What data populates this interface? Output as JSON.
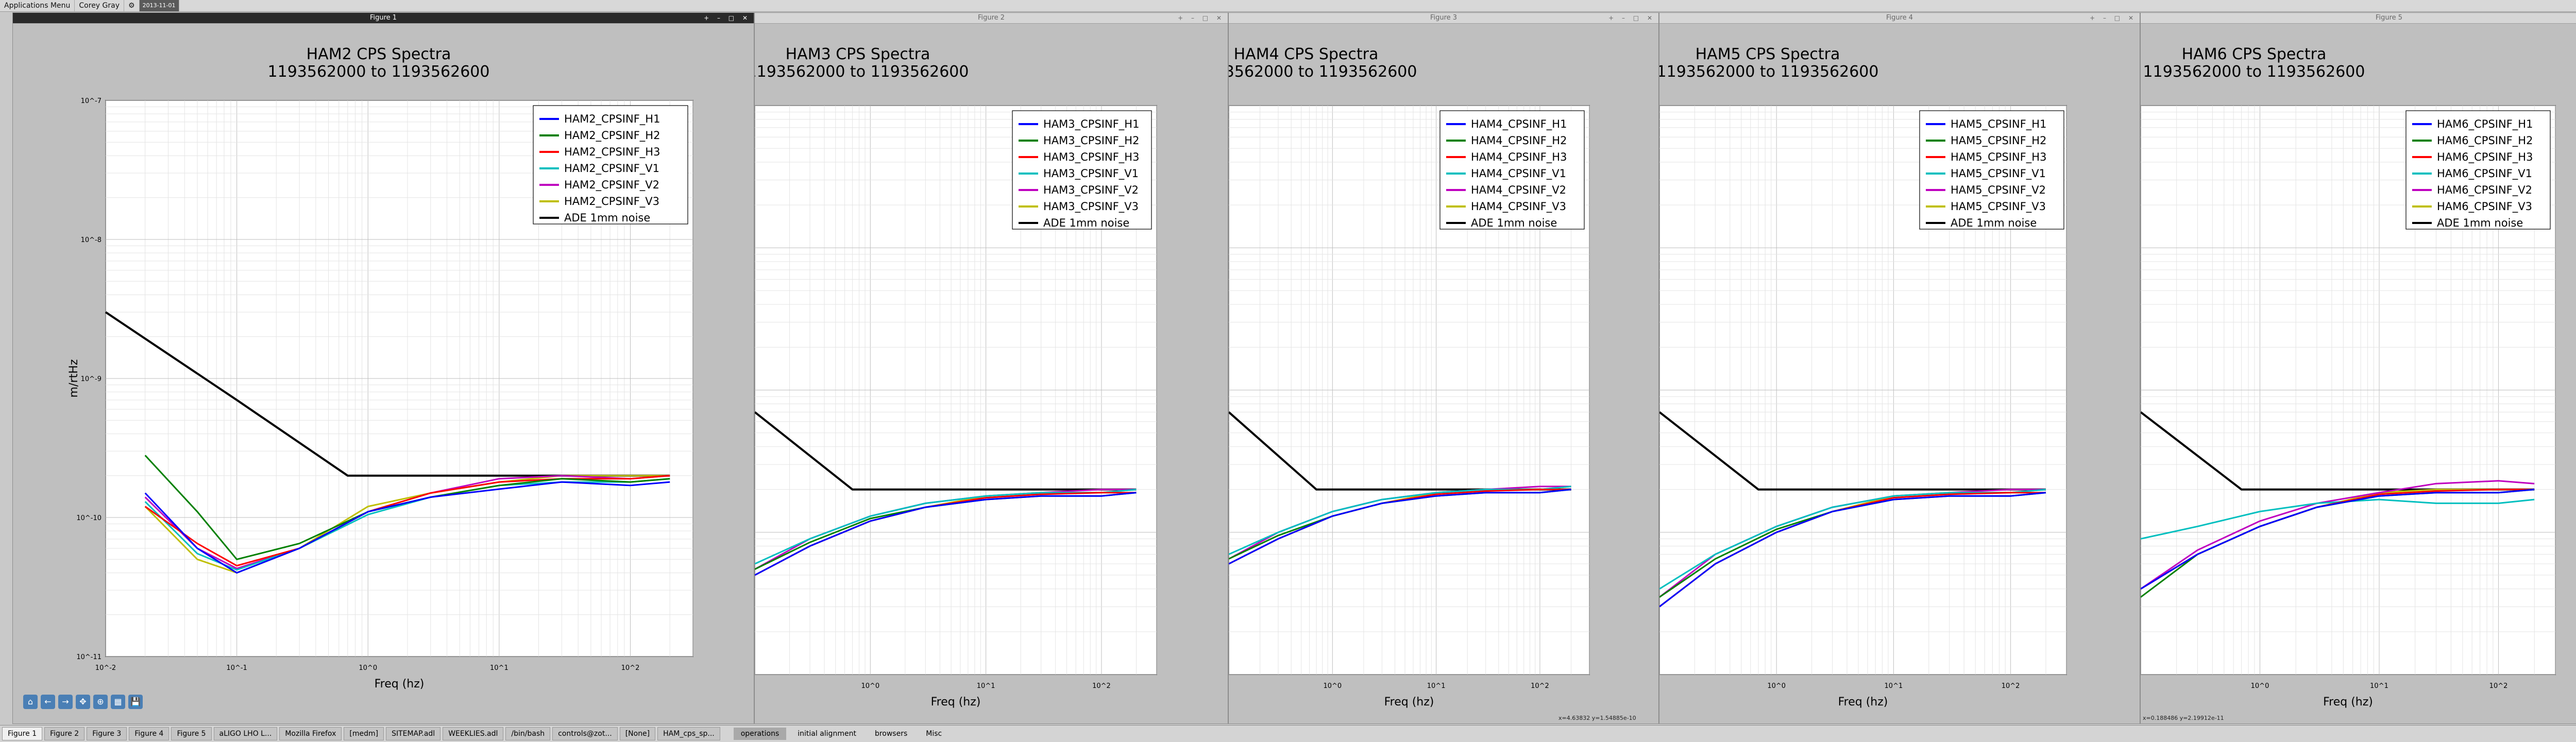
{
  "topbar": {
    "apps_menu": "Applications Menu",
    "user": "Corey Gray",
    "clock": "2013-11-01"
  },
  "colors": {
    "H1": "#0000ff",
    "H2": "#008000",
    "H3": "#ff0000",
    "V1": "#00bfbf",
    "V2": "#bf00bf",
    "V3": "#bfbf00",
    "noise": "#000000"
  },
  "windows": [
    {
      "title": "Figure 1",
      "active": true
    },
    {
      "title": "Figure 2",
      "active": false
    },
    {
      "title": "Figure 3",
      "active": false
    },
    {
      "title": "Figure 4",
      "active": false
    },
    {
      "title": "Figure 5",
      "active": false
    }
  ],
  "charts": [
    {
      "title": "HAM2 CPS Spectra",
      "subtitle": "1193562000 to 1193562600",
      "prefix": "HAM2"
    },
    {
      "title": "HAM3 CPS Spectra",
      "subtitle": "1193562000 to 1193562600",
      "prefix": "HAM3"
    },
    {
      "title": "HAM4 CPS Spectra",
      "subtitle": "1193562000 to 1193562600",
      "prefix": "HAM4"
    },
    {
      "title": "HAM5 CPS Spectra",
      "subtitle": "1193562000 to 1193562600",
      "prefix": "HAM5"
    },
    {
      "title": "HAM6 CPS Spectra",
      "subtitle": "1193562000 to 1193562600",
      "prefix": "HAM6"
    }
  ],
  "chart_data": [
    {
      "type": "line",
      "title": "HAM2 CPS Spectra",
      "subtitle": "1193562000 to 1193562600",
      "xlabel": "Freq (hz)",
      "ylabel": "m/rtHz",
      "xscale": "log",
      "yscale": "log",
      "xlim": [
        0.01,
        300
      ],
      "ylim": [
        1e-11,
        1e-07
      ],
      "x_ticks": [
        "10^-2",
        "10^-1",
        "10^0",
        "10^1",
        "10^2"
      ],
      "y_ticks": [
        "10^-7",
        "10^-8",
        "10^-9",
        "10^-10",
        "10^-11"
      ],
      "legend_position": "top-right",
      "grid": true,
      "series": [
        {
          "name": "HAM2_CPSINF_H1",
          "x": [
            0.02,
            0.05,
            0.1,
            0.3,
            1,
            3,
            10,
            30,
            100,
            200
          ],
          "y": [
            1.5e-10,
            6e-11,
            4e-11,
            6e-11,
            1.1e-10,
            1.4e-10,
            1.6e-10,
            1.8e-10,
            1.7e-10,
            1.8e-10
          ]
        },
        {
          "name": "HAM2_CPSINF_H2",
          "x": [
            0.02,
            0.05,
            0.1,
            0.3,
            1,
            3,
            10,
            30,
            100,
            200
          ],
          "y": [
            2.8e-10,
            1.1e-10,
            5e-11,
            6.5e-11,
            1.1e-10,
            1.4e-10,
            1.7e-10,
            1.9e-10,
            1.8e-10,
            1.9e-10
          ]
        },
        {
          "name": "HAM2_CPSINF_H3",
          "x": [
            0.02,
            0.05,
            0.1,
            0.3,
            1,
            3,
            10,
            30,
            100,
            200
          ],
          "y": [
            1.2e-10,
            6.5e-11,
            4.5e-11,
            6e-11,
            1.1e-10,
            1.5e-10,
            1.8e-10,
            1.9e-10,
            1.9e-10,
            2e-10
          ]
        },
        {
          "name": "HAM2_CPSINF_V1",
          "x": [
            0.02,
            0.05,
            0.1,
            0.3,
            1,
            3,
            10,
            30,
            100,
            200
          ],
          "y": [
            1.3e-10,
            5.5e-11,
            4.2e-11,
            6e-11,
            1.05e-10,
            1.4e-10,
            1.7e-10,
            1.8e-10,
            1.8e-10,
            1.9e-10
          ]
        },
        {
          "name": "HAM2_CPSINF_V2",
          "x": [
            0.02,
            0.05,
            0.1,
            0.3,
            1,
            3,
            10,
            30,
            100,
            200
          ],
          "y": [
            1.4e-10,
            6e-11,
            4.3e-11,
            6e-11,
            1.1e-10,
            1.5e-10,
            1.9e-10,
            2e-10,
            1.9e-10,
            2e-10
          ]
        },
        {
          "name": "HAM2_CPSINF_V3",
          "x": [
            0.02,
            0.05,
            0.1,
            0.3,
            1,
            3,
            10,
            30,
            100,
            200
          ],
          "y": [
            1.2e-10,
            5e-11,
            4e-11,
            6e-11,
            1.2e-10,
            1.5e-10,
            1.8e-10,
            2e-10,
            2e-10,
            2e-10
          ]
        },
        {
          "name": "ADE 1mm noise",
          "x": [
            0.01,
            0.1,
            0.7,
            200
          ],
          "y": [
            3e-09,
            7e-10,
            2e-10,
            2e-10
          ]
        }
      ]
    },
    {
      "type": "line",
      "title": "HAM3 CPS Spectra",
      "subtitle": "1193562000 to 1193562600",
      "xlabel": "Freq (hz)",
      "xscale": "log",
      "yscale": "log",
      "xlim": [
        0.1,
        300
      ],
      "ylim": [
        1e-11,
        1e-07
      ],
      "x_ticks": [
        "10^0",
        "10^1",
        "10^2"
      ],
      "legend_position": "top-right",
      "grid": true,
      "series": [
        {
          "name": "HAM3_CPSINF_H1",
          "x": [
            0.1,
            0.3,
            1,
            3,
            10,
            30,
            100,
            200
          ],
          "y": [
            5e-11,
            8e-11,
            1.2e-10,
            1.5e-10,
            1.7e-10,
            1.8e-10,
            1.8e-10,
            1.9e-10
          ]
        },
        {
          "name": "HAM3_CPSINF_H2",
          "x": [
            0.1,
            0.3,
            1,
            3,
            10,
            30,
            100,
            200
          ],
          "y": [
            5.5e-11,
            8.5e-11,
            1.25e-10,
            1.5e-10,
            1.7e-10,
            1.8e-10,
            1.8e-10,
            1.9e-10
          ]
        },
        {
          "name": "HAM3_CPSINF_H3",
          "x": [
            0.1,
            0.3,
            1,
            3,
            10,
            30,
            100,
            200
          ],
          "y": [
            5e-11,
            8e-11,
            1.2e-10,
            1.5e-10,
            1.75e-10,
            1.85e-10,
            1.9e-10,
            1.9e-10
          ]
        },
        {
          "name": "HAM3_CPSINF_V1",
          "x": [
            0.1,
            0.3,
            1,
            3,
            10,
            30,
            100,
            200
          ],
          "y": [
            6e-11,
            9e-11,
            1.3e-10,
            1.6e-10,
            1.8e-10,
            1.9e-10,
            1.9e-10,
            2e-10
          ]
        },
        {
          "name": "HAM3_CPSINF_V2",
          "x": [
            0.1,
            0.3,
            1,
            3,
            10,
            30,
            100,
            200
          ],
          "y": [
            5.5e-11,
            9e-11,
            1.3e-10,
            1.6e-10,
            1.8e-10,
            1.9e-10,
            2e-10,
            2e-10
          ]
        },
        {
          "name": "HAM3_CPSINF_V3",
          "x": [
            0.1,
            0.3,
            1,
            3,
            10,
            30,
            100,
            200
          ],
          "y": [
            5e-11,
            8e-11,
            1.2e-10,
            1.5e-10,
            1.8e-10,
            1.9e-10,
            1.9e-10,
            2e-10
          ]
        },
        {
          "name": "ADE 1mm noise",
          "x": [
            0.1,
            0.7,
            200
          ],
          "y": [
            7e-10,
            2e-10,
            2e-10
          ]
        }
      ]
    },
    {
      "type": "line",
      "title": "HAM4 CPS Spectra",
      "subtitle": "1193562000 to 1193562600",
      "xlabel": "Freq (hz)",
      "xscale": "log",
      "yscale": "log",
      "xlim": [
        0.1,
        300
      ],
      "ylim": [
        1e-11,
        1e-07
      ],
      "x_ticks": [
        "10^0",
        "10^1",
        "10^2"
      ],
      "legend_position": "top-right",
      "grid": true,
      "series": [
        {
          "name": "HAM4_CPSINF_H1",
          "x": [
            0.1,
            0.3,
            1,
            3,
            10,
            30,
            100,
            200
          ],
          "y": [
            6e-11,
            9e-11,
            1.3e-10,
            1.6e-10,
            1.8e-10,
            1.9e-10,
            1.9e-10,
            2e-10
          ]
        },
        {
          "name": "HAM4_CPSINF_H2",
          "x": [
            0.1,
            0.3,
            1,
            3,
            10,
            30,
            100,
            200
          ],
          "y": [
            6.5e-11,
            9.5e-11,
            1.3e-10,
            1.6e-10,
            1.8e-10,
            1.9e-10,
            1.9e-10,
            2e-10
          ]
        },
        {
          "name": "HAM4_CPSINF_H3",
          "x": [
            0.1,
            0.3,
            1,
            3,
            10,
            30,
            100,
            200
          ],
          "y": [
            6e-11,
            9e-11,
            1.3e-10,
            1.6e-10,
            1.85e-10,
            1.95e-10,
            2e-10,
            2e-10
          ]
        },
        {
          "name": "HAM4_CPSINF_V1",
          "x": [
            0.1,
            0.3,
            1,
            3,
            10,
            30,
            100,
            200
          ],
          "y": [
            7e-11,
            1e-10,
            1.4e-10,
            1.7e-10,
            1.9e-10,
            2e-10,
            2e-10,
            2.1e-10
          ]
        },
        {
          "name": "HAM4_CPSINF_V2",
          "x": [
            0.1,
            0.3,
            1,
            3,
            10,
            30,
            100,
            200
          ],
          "y": [
            6.5e-11,
            1e-10,
            1.4e-10,
            1.7e-10,
            1.9e-10,
            2e-10,
            2.1e-10,
            2.1e-10
          ]
        },
        {
          "name": "HAM4_CPSINF_V3",
          "x": [
            0.1,
            0.3,
            1,
            3,
            10,
            30,
            100,
            200
          ],
          "y": [
            6e-11,
            9e-11,
            1.3e-10,
            1.6e-10,
            1.9e-10,
            2e-10,
            2e-10,
            2.1e-10
          ]
        },
        {
          "name": "ADE 1mm noise",
          "x": [
            0.1,
            0.7,
            200
          ],
          "y": [
            7e-10,
            2e-10,
            2e-10
          ]
        }
      ]
    },
    {
      "type": "line",
      "title": "HAM5 CPS Spectra",
      "subtitle": "1193562000 to 1193562600",
      "xlabel": "Freq (hz)",
      "xscale": "log",
      "yscale": "log",
      "xlim": [
        0.1,
        300
      ],
      "ylim": [
        1e-11,
        1e-07
      ],
      "x_ticks": [
        "10^0",
        "10^1",
        "10^2"
      ],
      "legend_position": "top-right",
      "grid": true,
      "series": [
        {
          "name": "HAM5_CPSINF_H1",
          "x": [
            0.1,
            0.3,
            1,
            3,
            10,
            30,
            100,
            200
          ],
          "y": [
            3e-11,
            6e-11,
            1e-10,
            1.4e-10,
            1.7e-10,
            1.8e-10,
            1.8e-10,
            1.9e-10
          ]
        },
        {
          "name": "HAM5_CPSINF_H2",
          "x": [
            0.1,
            0.3,
            1,
            3,
            10,
            30,
            100,
            200
          ],
          "y": [
            3.5e-11,
            6.5e-11,
            1.05e-10,
            1.4e-10,
            1.7e-10,
            1.8e-10,
            1.8e-10,
            1.9e-10
          ]
        },
        {
          "name": "HAM5_CPSINF_H3",
          "x": [
            0.1,
            0.3,
            1,
            3,
            10,
            30,
            100,
            200
          ],
          "y": [
            3e-11,
            6e-11,
            1e-10,
            1.4e-10,
            1.75e-10,
            1.85e-10,
            1.9e-10,
            1.9e-10
          ]
        },
        {
          "name": "HAM5_CPSINF_V1",
          "x": [
            0.1,
            0.3,
            1,
            3,
            10,
            30,
            100,
            200
          ],
          "y": [
            4e-11,
            7e-11,
            1.1e-10,
            1.5e-10,
            1.8e-10,
            1.9e-10,
            1.9e-10,
            2e-10
          ]
        },
        {
          "name": "HAM5_CPSINF_V2",
          "x": [
            0.1,
            0.3,
            1,
            3,
            10,
            30,
            100,
            200
          ],
          "y": [
            3.5e-11,
            7e-11,
            1.1e-10,
            1.5e-10,
            1.8e-10,
            1.9e-10,
            2e-10,
            2e-10
          ]
        },
        {
          "name": "HAM5_CPSINF_V3",
          "x": [
            0.1,
            0.3,
            1,
            3,
            10,
            30,
            100,
            200
          ],
          "y": [
            3e-11,
            6e-11,
            1e-10,
            1.4e-10,
            1.8e-10,
            1.9e-10,
            1.9e-10,
            2e-10
          ]
        },
        {
          "name": "ADE 1mm noise",
          "x": [
            0.1,
            0.7,
            200
          ],
          "y": [
            7e-10,
            2e-10,
            2e-10
          ]
        }
      ]
    },
    {
      "type": "line",
      "title": "HAM6 CPS Spectra",
      "subtitle": "1193562000 to 1193562600",
      "xlabel": "Freq (hz)",
      "xscale": "log",
      "yscale": "log",
      "xlim": [
        0.1,
        300
      ],
      "ylim": [
        1e-11,
        1e-07
      ],
      "x_ticks": [
        "10^0",
        "10^1",
        "10^2"
      ],
      "legend_position": "top-right",
      "grid": true,
      "series": [
        {
          "name": "HAM6_CPSINF_H1",
          "x": [
            0.1,
            0.3,
            1,
            3,
            10,
            30,
            100,
            200
          ],
          "y": [
            4e-11,
            7e-11,
            1.1e-10,
            1.5e-10,
            1.8e-10,
            1.9e-10,
            1.9e-10,
            2e-10
          ]
        },
        {
          "name": "HAM6_CPSINF_H2",
          "x": [
            0.1,
            0.3,
            1,
            3,
            10,
            30,
            100,
            200
          ],
          "y": [
            3.5e-11,
            7e-11,
            1.1e-10,
            1.5e-10,
            1.8e-10,
            1.9e-10,
            1.9e-10,
            2e-10
          ]
        },
        {
          "name": "HAM6_CPSINF_H3",
          "x": [
            0.1,
            0.3,
            1,
            3,
            10,
            30,
            100,
            200
          ],
          "y": [
            4e-11,
            7e-11,
            1.1e-10,
            1.5e-10,
            1.85e-10,
            1.95e-10,
            2e-10,
            2e-10
          ]
        },
        {
          "name": "HAM6_CPSINF_V1",
          "x": [
            0.1,
            0.3,
            1,
            3,
            10,
            30,
            100,
            200
          ],
          "y": [
            9e-11,
            1.1e-10,
            1.4e-10,
            1.6e-10,
            1.7e-10,
            1.6e-10,
            1.6e-10,
            1.7e-10
          ]
        },
        {
          "name": "HAM6_CPSINF_V2",
          "x": [
            0.1,
            0.3,
            1,
            3,
            10,
            30,
            100,
            200
          ],
          "y": [
            4e-11,
            7.5e-11,
            1.2e-10,
            1.6e-10,
            1.9e-10,
            2.2e-10,
            2.3e-10,
            2.2e-10
          ]
        },
        {
          "name": "HAM6_CPSINF_V3",
          "x": [
            0.1,
            0.3,
            1,
            3,
            10,
            30,
            100,
            200
          ],
          "y": [
            4e-11,
            7e-11,
            1.1e-10,
            1.5e-10,
            1.9e-10,
            2e-10,
            2e-10,
            2e-10
          ]
        },
        {
          "name": "ADE 1mm noise",
          "x": [
            0.1,
            0.7,
            200
          ],
          "y": [
            7e-10,
            2e-10,
            2e-10
          ]
        }
      ]
    }
  ],
  "toolbar": {
    "icons": [
      "home-icon",
      "back-icon",
      "forward-icon",
      "pan-icon",
      "zoom-icon",
      "subplots-icon",
      "save-icon"
    ],
    "glyphs": [
      "⌂",
      "←",
      "→",
      "✥",
      "⊕",
      "▦",
      "💾"
    ]
  },
  "coords": [
    {
      "text": "x=4.63832     y=1.54885e-10"
    },
    {
      "text": "x=0.188486    y=2.19912e-11"
    }
  ],
  "taskbar": {
    "tasks": [
      "Figure 1",
      "Figure 2",
      "Figure 3",
      "Figure 4",
      "Figure 5",
      "aLIGO LHO L...",
      "Mozilla Firefox",
      "[medm]",
      "SITEMAP.adl",
      "WEEKLIES.adl",
      "/bin/bash",
      "controls@zot...",
      "[None]",
      "HAM_cps_sp..."
    ],
    "workspaces": [
      "operations",
      "initial alignment",
      "browsers",
      "Misc"
    ]
  }
}
